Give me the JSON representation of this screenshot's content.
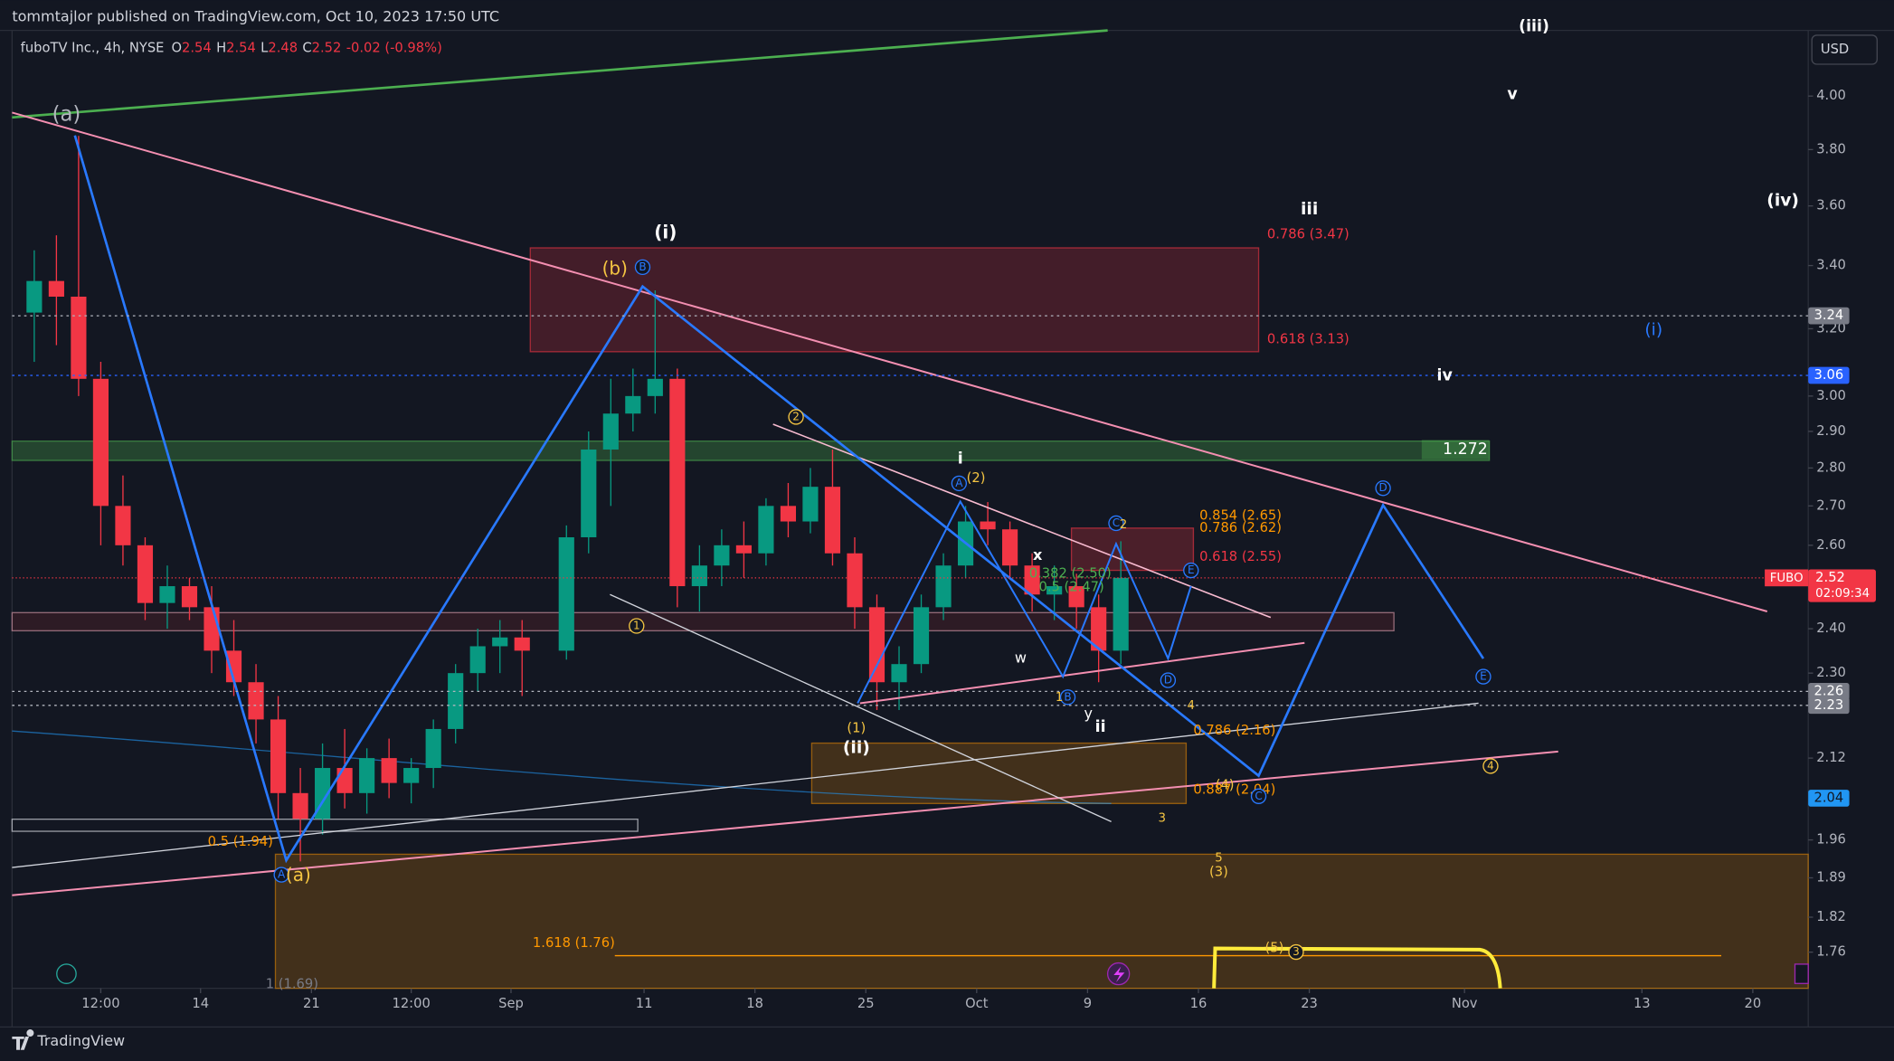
{
  "header": {
    "publisher": "tommtajlor published on TradingView.com, Oct 10, 2023 17:50 UTC"
  },
  "footer": {
    "brand": "TradingView"
  },
  "currency": "USD",
  "chart_data": {
    "type": "candlestick",
    "title": "fuboTV Inc., 4h, NYSE",
    "ohlc_legend": [
      {
        "label": "O",
        "value": 2.54
      },
      {
        "label": "H",
        "value": 2.54
      },
      {
        "label": "L",
        "value": 2.48
      },
      {
        "label": "C",
        "value": 2.52
      }
    ],
    "change": "-0.02 (-0.98%)",
    "up_color": "#089981",
    "down_color": "#f23645",
    "log_scale": true,
    "ylim": [
      1.7,
      4.26
    ],
    "yticks": [
      {
        "value": 4.0,
        "label": "4.00"
      },
      {
        "value": 3.8,
        "label": "3.80"
      },
      {
        "value": 3.6,
        "label": "3.60"
      },
      {
        "value": 3.4,
        "label": "3.40"
      },
      {
        "value": 3.2,
        "label": "3.20"
      },
      {
        "value": 3.0,
        "label": "3.00"
      },
      {
        "value": 2.9,
        "label": "2.90"
      },
      {
        "value": 2.8,
        "label": "2.80"
      },
      {
        "value": 2.7,
        "label": "2.70"
      },
      {
        "value": 2.6,
        "label": "2.60"
      },
      {
        "value": 2.4,
        "label": "2.40"
      },
      {
        "value": 2.3,
        "label": "2.30"
      },
      2.12,
      1.96,
      1.89,
      1.82,
      1.76
    ],
    "xlim": [
      "2023-08-01 12:00",
      "2023-11-22 12:00"
    ],
    "xticks": [
      {
        "value": "2023-08-07 12:00",
        "label": "12:00"
      },
      {
        "value": "2023-08-14",
        "label": "14"
      },
      {
        "value": "2023-08-21",
        "label": "21"
      },
      {
        "value": "2023-08-25 12:00",
        "label": "12:00"
      },
      {
        "value": "2023-09-01",
        "label": "Sep"
      },
      {
        "value": "2023-09-11",
        "label": "11"
      },
      {
        "value": "2023-09-18",
        "label": "18"
      },
      {
        "value": "2023-09-25",
        "label": "25"
      },
      {
        "value": "2023-10-02",
        "label": "Oct"
      },
      {
        "value": "2023-10-09",
        "label": "9"
      },
      {
        "value": "2023-10-16",
        "label": "16"
      },
      {
        "value": "2023-10-23",
        "label": "23"
      },
      {
        "value": "2023-11-01",
        "label": "Nov"
      },
      {
        "value": "2023-11-13",
        "label": "13"
      },
      {
        "value": "2023-11-20",
        "label": "20"
      }
    ],
    "x": [
      "2023-08-02",
      "2023-08-03",
      "2023-08-04",
      "2023-08-07",
      "2023-08-08",
      "2023-08-09",
      "2023-08-10",
      "2023-08-11",
      "2023-08-14",
      "2023-08-15",
      "2023-08-16",
      "2023-08-17",
      "2023-08-18",
      "2023-08-21",
      "2023-08-22",
      "2023-08-23",
      "2023-08-24",
      "2023-08-25",
      "2023-08-28",
      "2023-08-29",
      "2023-08-30",
      "2023-08-31",
      "2023-09-01",
      "2023-09-05",
      "2023-09-06",
      "2023-09-07",
      "2023-09-08",
      "2023-09-11",
      "2023-09-12",
      "2023-09-13",
      "2023-09-14",
      "2023-09-15",
      "2023-09-18",
      "2023-09-19",
      "2023-09-20",
      "2023-09-21",
      "2023-09-22",
      "2023-09-25",
      "2023-09-26",
      "2023-09-27",
      "2023-09-28",
      "2023-09-29",
      "2023-10-02",
      "2023-10-03",
      "2023-10-04",
      "2023-10-05",
      "2023-10-06",
      "2023-10-09",
      "2023-10-10"
    ],
    "open": [
      3.25,
      3.35,
      3.3,
      3.05,
      2.7,
      2.6,
      2.46,
      2.5,
      2.45,
      2.35,
      2.28,
      2.2,
      2.05,
      2.0,
      2.1,
      2.05,
      2.12,
      2.07,
      2.1,
      2.18,
      2.3,
      2.36,
      2.38,
      2.35,
      2.62,
      2.85,
      2.95,
      3.0,
      3.05,
      2.5,
      2.55,
      2.6,
      2.58,
      2.7,
      2.66,
      2.75,
      2.58,
      2.45,
      2.28,
      2.32,
      2.45,
      2.55,
      2.66,
      2.64,
      2.55,
      2.48,
      2.5,
      2.45,
      2.35
    ],
    "high": [
      3.45,
      3.5,
      3.85,
      3.1,
      2.78,
      2.62,
      2.55,
      2.52,
      2.5,
      2.42,
      2.32,
      2.25,
      2.1,
      2.15,
      2.18,
      2.14,
      2.16,
      2.12,
      2.2,
      2.32,
      2.4,
      2.42,
      2.42,
      2.65,
      2.9,
      3.05,
      3.08,
      3.32,
      3.08,
      2.6,
      2.64,
      2.66,
      2.72,
      2.76,
      2.8,
      2.85,
      2.62,
      2.48,
      2.36,
      2.48,
      2.58,
      2.7,
      2.71,
      2.66,
      2.58,
      2.55,
      2.53,
      2.48,
      2.61
    ],
    "low": [
      3.1,
      3.15,
      3.0,
      2.6,
      2.55,
      2.42,
      2.4,
      2.42,
      2.3,
      2.25,
      2.15,
      2.0,
      1.92,
      1.97,
      2.02,
      2.01,
      2.04,
      2.03,
      2.06,
      2.15,
      2.26,
      2.3,
      2.25,
      2.33,
      2.58,
      2.7,
      2.9,
      2.95,
      2.45,
      2.44,
      2.5,
      2.52,
      2.55,
      2.62,
      2.63,
      2.55,
      2.4,
      2.22,
      2.22,
      2.3,
      2.42,
      2.52,
      2.6,
      2.52,
      2.44,
      2.42,
      2.4,
      2.28,
      2.32
    ],
    "close": [
      3.35,
      3.3,
      3.05,
      2.7,
      2.6,
      2.46,
      2.5,
      2.45,
      2.35,
      2.28,
      2.2,
      2.05,
      2.0,
      2.1,
      2.05,
      2.12,
      2.07,
      2.1,
      2.18,
      2.3,
      2.36,
      2.38,
      2.35,
      2.62,
      2.85,
      2.95,
      3.0,
      3.05,
      2.5,
      2.55,
      2.6,
      2.58,
      2.7,
      2.66,
      2.75,
      2.58,
      2.45,
      2.28,
      2.32,
      2.45,
      2.55,
      2.66,
      2.64,
      2.55,
      2.48,
      2.5,
      2.45,
      2.35,
      2.52
    ],
    "price_labels": [
      {
        "value": 3.24,
        "color": "#787b86"
      },
      {
        "value": 3.06,
        "color": "#2962ff"
      },
      {
        "value": 2.26,
        "color": "#787b86"
      },
      {
        "value": 2.23,
        "color": "#787b86"
      },
      {
        "value": 2.04,
        "color": "#2196f3"
      }
    ],
    "symbol_label": {
      "name": "FUBO",
      "value": 2.52,
      "countdown": "02:09:34",
      "color": "#f23645"
    },
    "annotations": [
      "(a)",
      "(i)",
      "(b)",
      "B",
      "iii",
      "(iv)",
      "v",
      "iv",
      "(i)",
      "(iii)",
      "0.786 (3.47)",
      "0.618 (3.13)",
      "1.272",
      "2",
      "i",
      "(2)",
      "A",
      "0.854 (2.65)",
      "0.786 (2.62)",
      "C",
      "2",
      "0.618 (2.55)",
      "x",
      "0.382 (2.50)",
      "0.5 (2.47)",
      "E",
      "1",
      "w",
      "B",
      "1",
      "y",
      "ii",
      "D",
      "4",
      "(1)",
      "(ii)",
      "0.786 (2.16)",
      "(4)",
      "0.887 (2.04)",
      "C",
      "D",
      "E",
      "4",
      "3",
      "0.5 (1.94)",
      "A",
      "(a)",
      "5",
      "(3)",
      "1.618 (1.76)",
      "(5)",
      "3",
      "1 (1.69)"
    ]
  }
}
